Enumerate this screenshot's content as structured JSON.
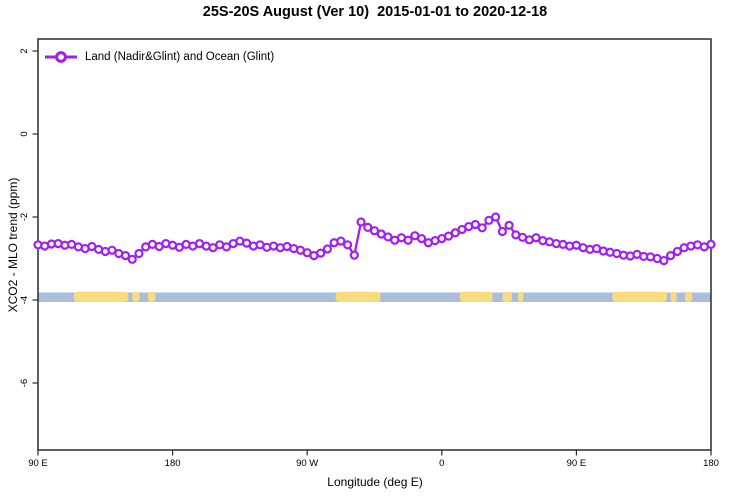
{
  "title": "25S-20S August (Ver 10)  2015-01-01 to 2020-12-18",
  "legend": {
    "label": "Land (Nadir&Glint) and Ocean (Glint)"
  },
  "axes": {
    "x": {
      "label": "Longitude (deg E)",
      "tick_labels": [
        "90 E",
        "180",
        "90 W",
        "0",
        "90 E",
        "180"
      ],
      "tick_lons": [
        90,
        180,
        270,
        360,
        450,
        540
      ],
      "range": [
        90,
        540
      ]
    },
    "y": {
      "label": "XCO2 - MLO trend (ppm)",
      "tick_labels": [
        "2",
        "0",
        "-2",
        "-4",
        "-6"
      ],
      "tick_values": [
        2,
        0,
        -2,
        -4,
        -6
      ],
      "range": [
        -7.6,
        2.3
      ]
    }
  },
  "colors": {
    "series": "#A020F0",
    "marker_fill": "#ffffff",
    "ocean_strip": "#a9bedd",
    "land_strip": "#fbdb80",
    "axis": "#2b2b2b",
    "text": "#000000"
  },
  "chart_data": {
    "type": "line",
    "title": "25S-20S August (Ver 10)  2015-01-01 to 2020-12-18",
    "xlabel": "Longitude (deg E)",
    "ylabel": "XCO2 - MLO trend (ppm)",
    "xlim": [
      90,
      540
    ],
    "ylim": [
      -7.6,
      2.3
    ],
    "grid": false,
    "legend_position": "top-left",
    "x_start": 90,
    "x_step": 4.5,
    "series": [
      {
        "name": "Land (Nadir&Glint) and Ocean (Glint)",
        "marker": "open-circle",
        "values": [
          -2.67,
          -2.7,
          -2.65,
          -2.64,
          -2.68,
          -2.66,
          -2.72,
          -2.76,
          -2.71,
          -2.78,
          -2.83,
          -2.8,
          -2.88,
          -2.93,
          -3.02,
          -2.88,
          -2.72,
          -2.66,
          -2.71,
          -2.64,
          -2.68,
          -2.73,
          -2.66,
          -2.7,
          -2.64,
          -2.7,
          -2.74,
          -2.67,
          -2.72,
          -2.64,
          -2.58,
          -2.63,
          -2.7,
          -2.67,
          -2.73,
          -2.7,
          -2.74,
          -2.71,
          -2.76,
          -2.8,
          -2.86,
          -2.93,
          -2.87,
          -2.77,
          -2.62,
          -2.58,
          -2.67,
          -2.92,
          -2.12,
          -2.25,
          -2.33,
          -2.41,
          -2.48,
          -2.56,
          -2.5,
          -2.56,
          -2.45,
          -2.52,
          -2.62,
          -2.57,
          -2.52,
          -2.46,
          -2.38,
          -2.3,
          -2.23,
          -2.18,
          -2.26,
          -2.08,
          -2.0,
          -2.35,
          -2.2,
          -2.43,
          -2.49,
          -2.55,
          -2.5,
          -2.57,
          -2.6,
          -2.64,
          -2.66,
          -2.7,
          -2.68,
          -2.74,
          -2.78,
          -2.76,
          -2.82,
          -2.85,
          -2.88,
          -2.92,
          -2.94,
          -2.9,
          -2.95,
          -2.96,
          -3.0,
          -3.05,
          -2.93,
          -2.83,
          -2.74,
          -2.7,
          -2.67,
          -2.72,
          -2.66
        ]
      }
    ],
    "map_strip": {
      "description": "land/ocean band drawn at y = -4",
      "y_value": -4,
      "land_patches_lon": [
        [
          114,
          150.5
        ],
        [
          153,
          158
        ],
        [
          163.5,
          168.5
        ],
        [
          289,
          319
        ],
        [
          372,
          394
        ],
        [
          400.5,
          407
        ],
        [
          411,
          414.5
        ],
        [
          474,
          510.5
        ],
        [
          513,
          517
        ],
        [
          522.5,
          527.5
        ]
      ]
    }
  }
}
